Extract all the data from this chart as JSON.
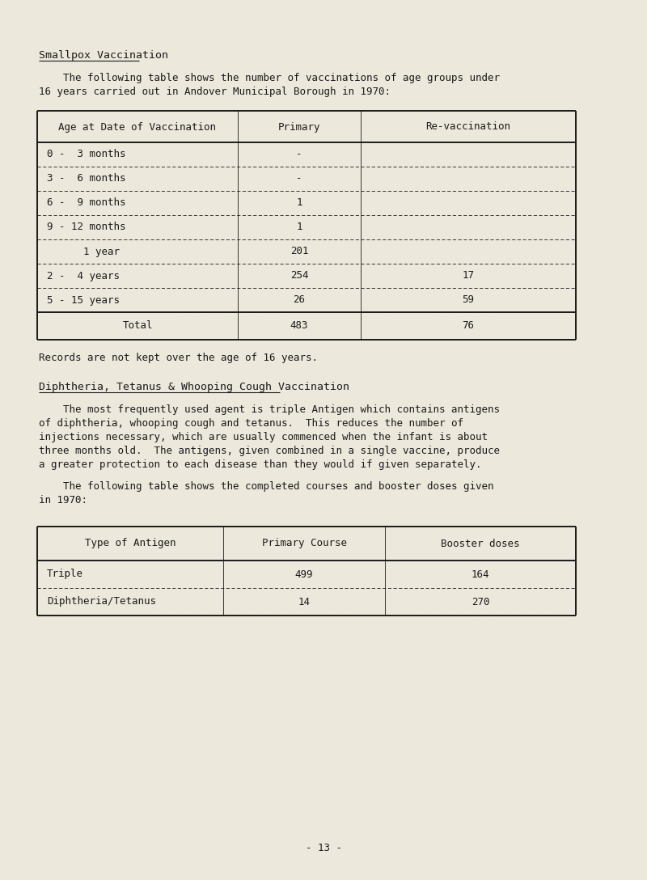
{
  "bg_color": "#ece8dc",
  "text_color": "#1a1a1a",
  "page_width": 8.0,
  "page_height": 10.88,
  "section1_heading": "Smallpox Vaccination",
  "section1_para_line1": "    The following table shows the number of vaccinations of age groups under",
  "section1_para_line2": "16 years carried out in Andover Municipal Borough in 1970:",
  "table1_headers": [
    "Age at Date of Vaccination",
    "Primary",
    "Re-vaccination"
  ],
  "table1_rows": [
    [
      "0 -  3 months",
      "-",
      ""
    ],
    [
      "3 -  6 months",
      "-",
      ""
    ],
    [
      "6 -  9 months",
      "1",
      ""
    ],
    [
      "9 - 12 months",
      "1",
      ""
    ],
    [
      "      1 year",
      "201",
      ""
    ],
    [
      "2 -  4 years",
      "254",
      "17"
    ],
    [
      "5 - 15 years",
      "26",
      "59"
    ]
  ],
  "table1_total_row": [
    "Total",
    "483",
    "76"
  ],
  "section1_footnote": "Records are not kept over the age of 16 years.",
  "section2_heading": "Diphtheria, Tetanus & Whooping Cough Vaccination",
  "section2_para1_lines": [
    "    The most frequently used agent is triple Antigen which contains antigens",
    "of diphtheria, whooping cough and tetanus.  This reduces the number of",
    "injections necessary, which are usually commenced when the infant is about",
    "three months old.  The antigens, given combined in a single vaccine, produce",
    "a greater protection to each disease than they would if given separately."
  ],
  "section2_para2_lines": [
    "    The following table shows the completed courses and booster doses given",
    "in 1970:"
  ],
  "table2_headers": [
    "Type of Antigen",
    "Primary Course",
    "Booster doses"
  ],
  "table2_rows": [
    [
      "Triple",
      "499",
      "164"
    ],
    [
      "Diphtheria/Tetanus",
      "14",
      "270"
    ]
  ],
  "page_number": "- 13 -",
  "heading_fontsize": 9.5,
  "body_fontsize": 9.0,
  "table_fontsize": 9.0,
  "lw_outer": 1.4,
  "lw_inner": 0.6
}
